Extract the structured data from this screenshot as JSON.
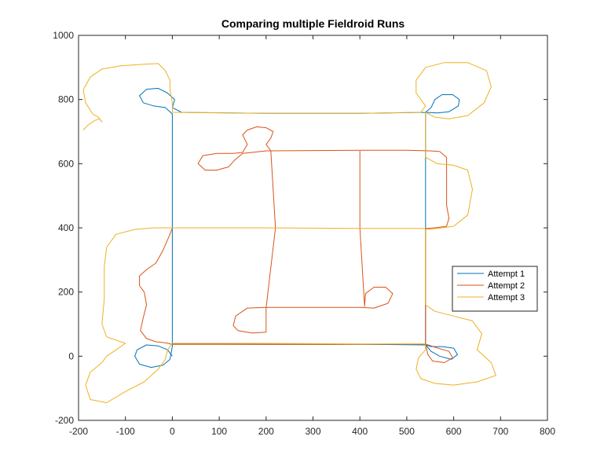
{
  "chart_data": {
    "type": "line",
    "title": "Comparing multiple Fieldroid Runs",
    "xlabel": "",
    "ylabel": "",
    "xlim": [
      -200,
      800
    ],
    "ylim": [
      -200,
      1000
    ],
    "xticks": [
      -200,
      -100,
      0,
      100,
      200,
      300,
      400,
      500,
      600,
      700,
      800
    ],
    "yticks": [
      -200,
      0,
      200,
      400,
      600,
      800,
      1000
    ],
    "xtick_labels": [
      "-200",
      "-100",
      "0",
      "100",
      "200",
      "300",
      "400",
      "500",
      "600",
      "700",
      "800"
    ],
    "ytick_labels": [
      "-200",
      "0",
      "200",
      "400",
      "600",
      "800",
      "1000"
    ],
    "grid": false,
    "legend_position": "right",
    "series": [
      {
        "name": "Attempt 1",
        "color": "#0072BD",
        "values": [
          [
            0,
            0
          ],
          [
            -10,
            20
          ],
          [
            -30,
            32
          ],
          [
            -55,
            35
          ],
          [
            -75,
            20
          ],
          [
            -80,
            0
          ],
          [
            -70,
            -25
          ],
          [
            -45,
            -35
          ],
          [
            -20,
            -28
          ],
          [
            -5,
            -10
          ],
          [
            0,
            30
          ],
          [
            0,
            150
          ],
          [
            0,
            390
          ],
          [
            0,
            600
          ],
          [
            0,
            755
          ],
          [
            -15,
            775
          ],
          [
            -40,
            780
          ],
          [
            -62,
            790
          ],
          [
            -70,
            812
          ],
          [
            -55,
            832
          ],
          [
            -30,
            835
          ],
          [
            -10,
            820
          ],
          [
            5,
            800
          ],
          [
            0,
            775
          ],
          [
            20,
            760
          ],
          [
            200,
            757
          ],
          [
            400,
            757
          ],
          [
            540,
            760
          ],
          [
            552,
            775
          ],
          [
            560,
            800
          ],
          [
            575,
            815
          ],
          [
            598,
            815
          ],
          [
            612,
            800
          ],
          [
            610,
            780
          ],
          [
            590,
            762
          ],
          [
            565,
            758
          ],
          [
            540,
            760
          ],
          [
            540,
            600
          ],
          [
            540,
            390
          ],
          [
            540,
            150
          ],
          [
            540,
            35
          ],
          [
            552,
            15
          ],
          [
            570,
            0
          ],
          [
            595,
            -10
          ],
          [
            608,
            5
          ],
          [
            600,
            25
          ],
          [
            575,
            30
          ],
          [
            552,
            30
          ],
          [
            540,
            35
          ],
          [
            400,
            37
          ],
          [
            200,
            37
          ],
          [
            0,
            38
          ]
        ]
      },
      {
        "name": "Attempt 2",
        "color": "#D95319",
        "values": [
          [
            0,
            400
          ],
          [
            -5,
            380
          ],
          [
            -20,
            330
          ],
          [
            -35,
            290
          ],
          [
            -55,
            270
          ],
          [
            -70,
            250
          ],
          [
            -70,
            220
          ],
          [
            -60,
            200
          ],
          [
            -55,
            160
          ],
          [
            -62,
            120
          ],
          [
            -68,
            80
          ],
          [
            -55,
            55
          ],
          [
            -35,
            45
          ],
          [
            -15,
            42
          ],
          [
            0,
            37
          ],
          [
            150,
            37
          ],
          [
            350,
            37
          ],
          [
            540,
            38
          ],
          [
            560,
            28
          ],
          [
            590,
            15
          ],
          [
            598,
            -5
          ],
          [
            580,
            -20
          ],
          [
            555,
            -15
          ],
          [
            545,
            5
          ],
          [
            540,
            38
          ],
          [
            540,
            160
          ],
          [
            540,
            398
          ],
          [
            560,
            400
          ],
          [
            585,
            405
          ],
          [
            590,
            430
          ],
          [
            585,
            470
          ],
          [
            585,
            520
          ],
          [
            585,
            570
          ],
          [
            585,
            620
          ],
          [
            570,
            638
          ],
          [
            548,
            640
          ],
          [
            500,
            642
          ],
          [
            400,
            642
          ],
          [
            200,
            640
          ],
          [
            150,
            632
          ],
          [
            132,
            610
          ],
          [
            120,
            590
          ],
          [
            95,
            580
          ],
          [
            70,
            580
          ],
          [
            55,
            600
          ],
          [
            65,
            625
          ],
          [
            95,
            632
          ],
          [
            130,
            632
          ],
          [
            150,
            635
          ],
          [
            160,
            660
          ],
          [
            150,
            690
          ],
          [
            160,
            705
          ],
          [
            180,
            715
          ],
          [
            200,
            712
          ],
          [
            215,
            700
          ],
          [
            210,
            680
          ],
          [
            200,
            660
          ],
          [
            210,
            640
          ],
          [
            220,
            400
          ],
          [
            200,
            150
          ],
          [
            200,
            75
          ],
          [
            170,
            72
          ],
          [
            140,
            80
          ],
          [
            130,
            95
          ],
          [
            135,
            125
          ],
          [
            160,
            150
          ],
          [
            200,
            152
          ],
          [
            400,
            152
          ],
          [
            430,
            150
          ],
          [
            460,
            165
          ],
          [
            470,
            195
          ],
          [
            455,
            215
          ],
          [
            430,
            215
          ],
          [
            412,
            195
          ],
          [
            410,
            155
          ],
          [
            400,
            400
          ],
          [
            400,
            640
          ]
        ]
      },
      {
        "name": "Attempt 3",
        "color": "#EDB120",
        "values": [
          [
            -190,
            705
          ],
          [
            -180,
            720
          ],
          [
            -165,
            735
          ],
          [
            -155,
            740
          ],
          [
            -150,
            730
          ],
          [
            -158,
            745
          ],
          [
            -170,
            755
          ],
          [
            -185,
            790
          ],
          [
            -190,
            830
          ],
          [
            -175,
            870
          ],
          [
            -150,
            895
          ],
          [
            -110,
            905
          ],
          [
            -60,
            910
          ],
          [
            -30,
            912
          ],
          [
            -15,
            890
          ],
          [
            -5,
            860
          ],
          [
            -5,
            830
          ],
          [
            0,
            790
          ],
          [
            0,
            760
          ],
          [
            200,
            757
          ],
          [
            400,
            757
          ],
          [
            530,
            760
          ],
          [
            540,
            780
          ],
          [
            520,
            820
          ],
          [
            520,
            860
          ],
          [
            540,
            900
          ],
          [
            580,
            915
          ],
          [
            630,
            915
          ],
          [
            670,
            890
          ],
          [
            680,
            840
          ],
          [
            665,
            790
          ],
          [
            630,
            750
          ],
          [
            590,
            740
          ],
          [
            560,
            745
          ],
          [
            540,
            760
          ],
          [
            540,
            620
          ],
          [
            565,
            600
          ],
          [
            600,
            595
          ],
          [
            630,
            580
          ],
          [
            640,
            520
          ],
          [
            630,
            440
          ],
          [
            600,
            405
          ],
          [
            565,
            398
          ],
          [
            540,
            395
          ],
          [
            540,
            160
          ],
          [
            560,
            140
          ],
          [
            600,
            125
          ],
          [
            640,
            110
          ],
          [
            660,
            70
          ],
          [
            650,
            20
          ],
          [
            680,
            -20
          ],
          [
            690,
            -60
          ],
          [
            650,
            -80
          ],
          [
            600,
            -90
          ],
          [
            560,
            -85
          ],
          [
            530,
            -70
          ],
          [
            520,
            -40
          ],
          [
            525,
            -5
          ],
          [
            540,
            20
          ],
          [
            540,
            38
          ],
          [
            400,
            38
          ],
          [
            200,
            40
          ],
          [
            0,
            40
          ],
          [
            -10,
            20
          ],
          [
            -15,
            -10
          ],
          [
            -30,
            -40
          ],
          [
            -60,
            -80
          ],
          [
            -100,
            -110
          ],
          [
            -140,
            -145
          ],
          [
            -175,
            -135
          ],
          [
            -185,
            -90
          ],
          [
            -175,
            -50
          ],
          [
            -150,
            -20
          ],
          [
            -140,
            0
          ],
          [
            -120,
            20
          ],
          [
            -100,
            40
          ],
          [
            -140,
            60
          ],
          [
            -150,
            100
          ],
          [
            -145,
            180
          ],
          [
            -145,
            280
          ],
          [
            -140,
            340
          ],
          [
            -120,
            380
          ],
          [
            -80,
            395
          ],
          [
            -40,
            400
          ],
          [
            0,
            400
          ],
          [
            200,
            400
          ],
          [
            400,
            398
          ],
          [
            540,
            398
          ]
        ]
      }
    ]
  }
}
